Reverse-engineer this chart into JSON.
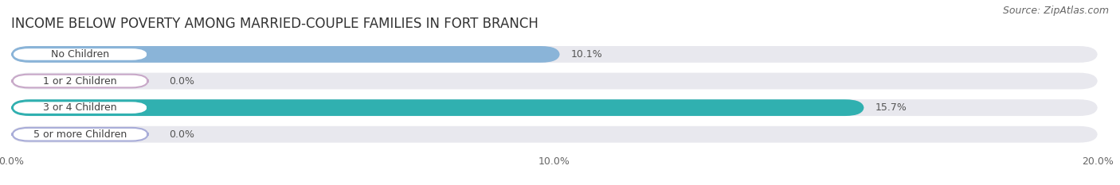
{
  "title": "INCOME BELOW POVERTY AMONG MARRIED-COUPLE FAMILIES IN FORT BRANCH",
  "source": "Source: ZipAtlas.com",
  "categories": [
    "No Children",
    "1 or 2 Children",
    "3 or 4 Children",
    "5 or more Children"
  ],
  "values": [
    10.1,
    0.0,
    15.7,
    0.0
  ],
  "bar_colors": [
    "#8ab4d8",
    "#c8a8c8",
    "#30b0b0",
    "#a8acd8"
  ],
  "xlim": [
    0,
    20.0
  ],
  "xticks": [
    0.0,
    10.0,
    20.0
  ],
  "xticklabels": [
    "0.0%",
    "10.0%",
    "20.0%"
  ],
  "background_color": "#ffffff",
  "bar_bg_color": "#e8e8ee",
  "title_fontsize": 12,
  "source_fontsize": 9,
  "bar_height": 0.62,
  "value_fontsize": 9,
  "label_fontsize": 9
}
